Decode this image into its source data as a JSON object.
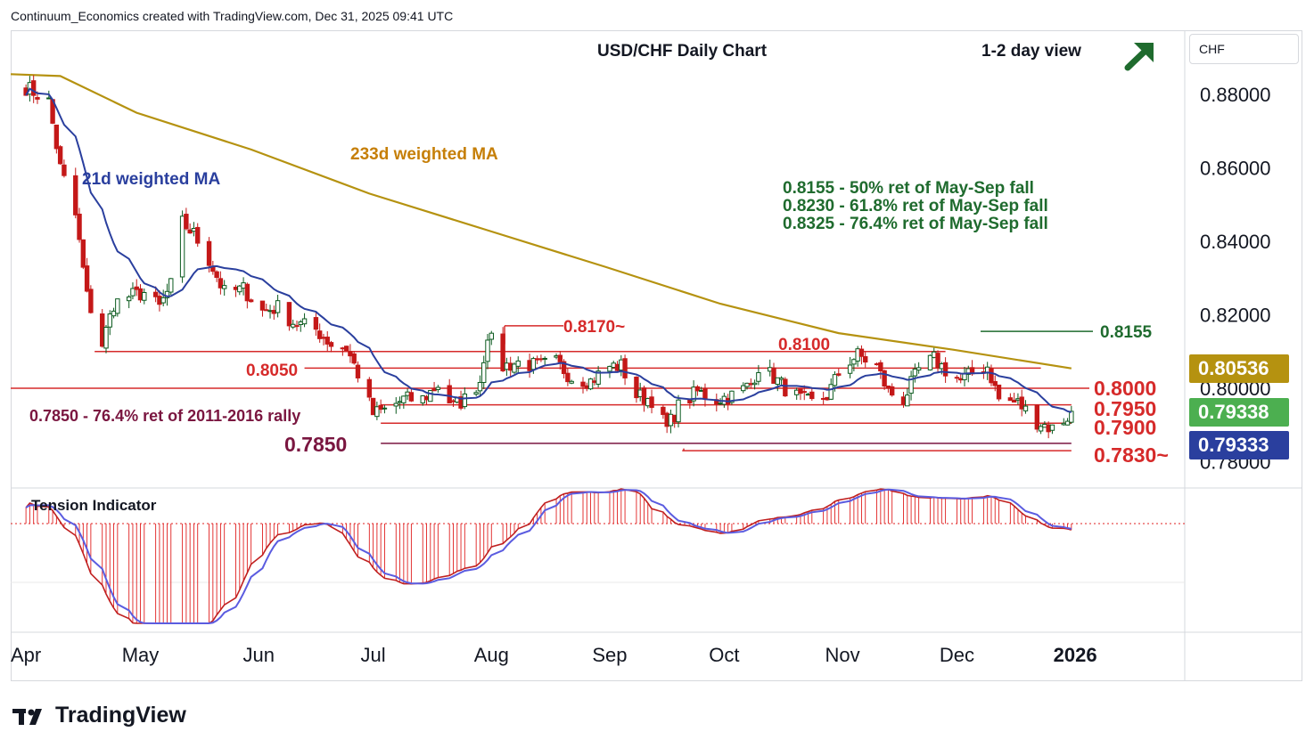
{
  "header": {
    "credit": "Continuum_Economics created with TradingView.com, Dec 31, 2025 09:41 UTC",
    "title": "USD/CHF Daily Chart",
    "view": "1-2 day view",
    "arrow_icon": "arrow-up-right-icon",
    "currency": "CHF"
  },
  "footer": {
    "brand": "TradingView",
    "logo_icon": "tradingview-logo-icon"
  },
  "colors": {
    "candle_up": "#0b5a1e",
    "candle_up_fill": "#ffffff",
    "candle_down": "#c41818",
    "ma21": "#2a3f9e",
    "ma233": "#b59210",
    "level_red": "#d62a2a",
    "green_text": "#1f6b2e",
    "maroon": "#7a1640",
    "tension_line": "#5b5ce0",
    "tension_fill": "#e02020"
  },
  "chart_data": {
    "type": "candlestick",
    "title": "USD/CHF Daily Chart",
    "y_axis": {
      "ticks": [
        "0.88000",
        "0.86000",
        "0.84000",
        "0.82000",
        "0.80000",
        "0.78000"
      ],
      "range": [
        0.7785,
        0.8905
      ]
    },
    "x_axis": {
      "ticks": [
        "Apr",
        "May",
        "Jun",
        "Jul",
        "Aug",
        "Sep",
        "Oct",
        "Nov",
        "Dec",
        "2026"
      ]
    },
    "moving_averages": [
      {
        "name": "21d weighted MA",
        "label": "21d weighted MA"
      },
      {
        "name": "233d weighted MA",
        "label": "233d weighted MA"
      }
    ],
    "price_path": [
      [
        "2025-04-01",
        0.882
      ],
      [
        "2025-04-07",
        0.878
      ],
      [
        "2025-04-10",
        0.86
      ],
      [
        "2025-04-14",
        0.847
      ],
      [
        "2025-04-17",
        0.825
      ],
      [
        "2025-04-21",
        0.812
      ],
      [
        "2025-04-24",
        0.823
      ],
      [
        "2025-04-28",
        0.825
      ],
      [
        "2025-05-02",
        0.826
      ],
      [
        "2025-05-06",
        0.822
      ],
      [
        "2025-05-09",
        0.828
      ],
      [
        "2025-05-12",
        0.845
      ],
      [
        "2025-05-15",
        0.842
      ],
      [
        "2025-05-19",
        0.835
      ],
      [
        "2025-05-23",
        0.826
      ],
      [
        "2025-05-28",
        0.827
      ],
      [
        "2025-06-02",
        0.821
      ],
      [
        "2025-06-06",
        0.822
      ],
      [
        "2025-06-10",
        0.818
      ],
      [
        "2025-06-16",
        0.816
      ],
      [
        "2025-06-20",
        0.812
      ],
      [
        "2025-06-24",
        0.811
      ],
      [
        "2025-06-27",
        0.804
      ],
      [
        "2025-07-01",
        0.793
      ],
      [
        "2025-07-04",
        0.794
      ],
      [
        "2025-07-09",
        0.797
      ],
      [
        "2025-07-14",
        0.797
      ],
      [
        "2025-07-18",
        0.801
      ],
      [
        "2025-07-22",
        0.795
      ],
      [
        "2025-07-25",
        0.797
      ],
      [
        "2025-07-29",
        0.802
      ],
      [
        "2025-07-31",
        0.815
      ],
      [
        "2025-08-04",
        0.806
      ],
      [
        "2025-08-08",
        0.807
      ],
      [
        "2025-08-13",
        0.806
      ],
      [
        "2025-08-18",
        0.807
      ],
      [
        "2025-08-22",
        0.803
      ],
      [
        "2025-08-27",
        0.802
      ],
      [
        "2025-09-01",
        0.806
      ],
      [
        "2025-09-04",
        0.806
      ],
      [
        "2025-09-08",
        0.798
      ],
      [
        "2025-09-12",
        0.797
      ],
      [
        "2025-09-16",
        0.789
      ],
      [
        "2025-09-19",
        0.795
      ],
      [
        "2025-09-24",
        0.799
      ],
      [
        "2025-09-29",
        0.797
      ],
      [
        "2025-10-03",
        0.798
      ],
      [
        "2025-10-08",
        0.801
      ],
      [
        "2025-10-10",
        0.806
      ],
      [
        "2025-10-14",
        0.803
      ],
      [
        "2025-10-17",
        0.8
      ],
      [
        "2025-10-21",
        0.797
      ],
      [
        "2025-10-24",
        0.796
      ],
      [
        "2025-10-28",
        0.798
      ],
      [
        "2025-11-01",
        0.806
      ],
      [
        "2025-11-05",
        0.809
      ],
      [
        "2025-11-10",
        0.806
      ],
      [
        "2025-11-13",
        0.799
      ],
      [
        "2025-11-17",
        0.797
      ],
      [
        "2025-11-21",
        0.805
      ],
      [
        "2025-11-25",
        0.808
      ],
      [
        "2025-11-28",
        0.805
      ],
      [
        "2025-12-02",
        0.802
      ],
      [
        "2025-12-05",
        0.804
      ],
      [
        "2025-12-09",
        0.806
      ],
      [
        "2025-12-12",
        0.797
      ],
      [
        "2025-12-17",
        0.796
      ],
      [
        "2025-12-22",
        0.791
      ],
      [
        "2025-12-26",
        0.789
      ],
      [
        "2025-12-31",
        0.793
      ]
    ],
    "levels": [
      {
        "name": "0.8170",
        "label": "0.8170~",
        "value": 0.817
      },
      {
        "name": "0.8100",
        "label": "0.8100",
        "value": 0.81
      },
      {
        "name": "0.8050",
        "label": "0.8050",
        "value": 0.8055
      },
      {
        "name": "0.8000",
        "label": "0.8000",
        "value": 0.8
      },
      {
        "name": "0.7950",
        "label": "0.7950",
        "value": 0.7955
      },
      {
        "name": "0.7900",
        "label": "0.7900",
        "value": 0.7905
      },
      {
        "name": "0.7850",
        "label": "0.7850",
        "value": 0.785
      },
      {
        "name": "0.7830",
        "label": "0.7830~",
        "value": 0.783
      },
      {
        "name": "0.8155",
        "label": "0.8155",
        "value": 0.8155
      }
    ],
    "annotations": [
      "0.8155 - 50% ret of May-Sep fall",
      "0.8230 - 61.8% ret of May-Sep fall",
      "0.8325 - 76.4% ret of May-Sep fall",
      "0.7850 - 76.4% ret of 2011-2016 rally"
    ],
    "price_badges": [
      {
        "name": "233d MA",
        "value": "0.80536",
        "color": "#b59210"
      },
      {
        "name": "last close",
        "value": "0.79338",
        "color": "#4caf50"
      },
      {
        "name": "21d MA",
        "value": "0.79333",
        "color": "#2a3f9e"
      }
    ],
    "indicator": {
      "name": "Tension Indicator",
      "label": "Tension Indicator"
    }
  }
}
